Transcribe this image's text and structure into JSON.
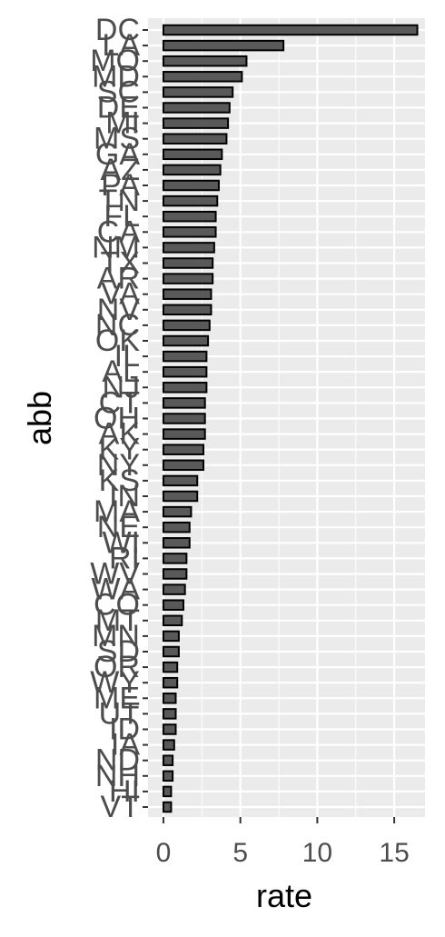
{
  "chart_data": {
    "type": "bar",
    "orientation": "horizontal",
    "xlabel": "rate",
    "ylabel": "abb",
    "xlim": [
      -1,
      17
    ],
    "x_ticks": [
      0,
      5,
      10,
      15
    ],
    "grid": true,
    "legend": "none",
    "colors": {
      "panel": "#ebebeb",
      "grid": "#ffffff",
      "bar_fill": "#595959",
      "bar_outline": "#000000",
      "text": "#4d4d4d",
      "axis_title": "#000000"
    },
    "categories": [
      "DC",
      "LA",
      "MO",
      "MD",
      "SC",
      "DE",
      "MI",
      "MS",
      "GA",
      "AZ",
      "PA",
      "TN",
      "FL",
      "CA",
      "NM",
      "TX",
      "AR",
      "VA",
      "NV",
      "NC",
      "OK",
      "IL",
      "AL",
      "NJ",
      "CT",
      "OH",
      "AK",
      "KY",
      "NY",
      "KS",
      "IN",
      "MA",
      "NE",
      "WI",
      "RI",
      "WV",
      "WA",
      "CO",
      "MT",
      "MN",
      "SD",
      "OR",
      "WY",
      "ME",
      "UT",
      "ID",
      "IA",
      "ND",
      "NH",
      "HI",
      "VT"
    ],
    "values": [
      16.5,
      7.8,
      5.4,
      5.1,
      4.5,
      4.3,
      4.2,
      4.1,
      3.8,
      3.7,
      3.6,
      3.5,
      3.4,
      3.4,
      3.3,
      3.2,
      3.2,
      3.1,
      3.1,
      3.0,
      2.9,
      2.8,
      2.8,
      2.8,
      2.7,
      2.7,
      2.7,
      2.6,
      2.6,
      2.2,
      2.2,
      1.8,
      1.7,
      1.7,
      1.5,
      1.5,
      1.4,
      1.3,
      1.2,
      1.0,
      1.0,
      0.9,
      0.9,
      0.8,
      0.8,
      0.8,
      0.7,
      0.6,
      0.6,
      0.5,
      0.5
    ]
  }
}
